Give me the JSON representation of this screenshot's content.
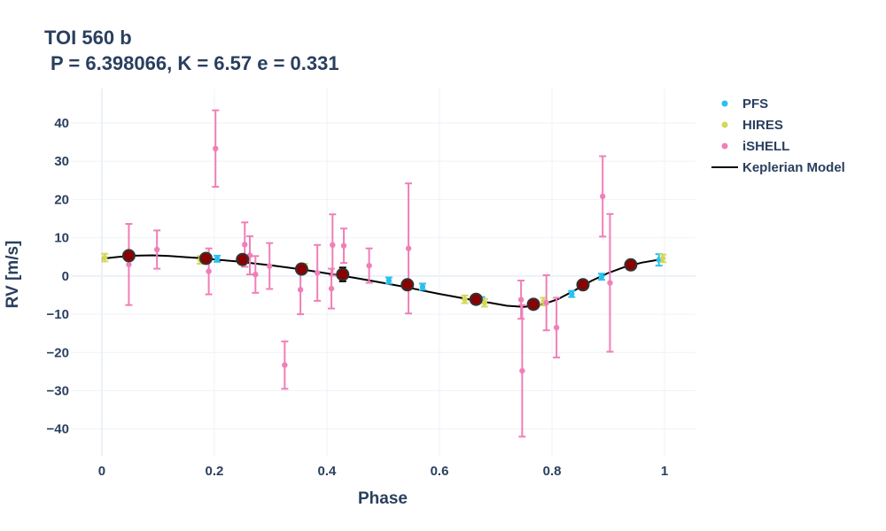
{
  "chart_data": {
    "type": "scatter",
    "title_line1": "TOI 560 b",
    "title_line2": "P = 6.398066, K = 6.57 e = 0.331",
    "xlabel": "Phase",
    "ylabel": "RV [m/s]",
    "xlim": [
      -0.055,
      1.055
    ],
    "ylim": [
      -47,
      49
    ],
    "xticks": [
      0,
      0.2,
      0.4,
      0.6,
      0.8,
      1
    ],
    "xtick_labels": [
      "0",
      "0.2",
      "0.4",
      "0.6",
      "0.8",
      "1"
    ],
    "yticks": [
      -40,
      -30,
      -20,
      -10,
      0,
      10,
      20,
      30,
      40
    ],
    "ytick_labels": [
      "−40",
      "−30",
      "−20",
      "−10",
      "0",
      "10",
      "20",
      "30",
      "40"
    ],
    "grid": true,
    "legend_position": "top-right",
    "series": [
      {
        "name": "PFS",
        "color": "#29c0f0",
        "marker": "point-with-errorbar",
        "points": [
          {
            "x": 0.205,
            "y": 4.5,
            "err": 0.8
          },
          {
            "x": 0.51,
            "y": -1.2,
            "err": 0.8
          },
          {
            "x": 0.57,
            "y": -2.8,
            "err": 0.8
          },
          {
            "x": 0.675,
            "y": -6.3,
            "err": 0.8
          },
          {
            "x": 0.835,
            "y": -4.7,
            "err": 0.8
          },
          {
            "x": 0.888,
            "y": -0.2,
            "err": 0.8
          },
          {
            "x": 0.99,
            "y": 4.2,
            "err": 1.5
          }
        ]
      },
      {
        "name": "HIRES",
        "color": "#d4d75a",
        "marker": "point-with-errorbar",
        "points": [
          {
            "x": 0.005,
            "y": 4.8,
            "err": 1.0
          },
          {
            "x": 0.175,
            "y": 4.2,
            "err": 1.0
          },
          {
            "x": 0.36,
            "y": 2.2,
            "err": 1.0
          },
          {
            "x": 0.645,
            "y": -6.1,
            "err": 1.0
          },
          {
            "x": 0.68,
            "y": -7.0,
            "err": 1.0
          },
          {
            "x": 0.785,
            "y": -6.7,
            "err": 1.0
          },
          {
            "x": 0.94,
            "y": 2.8,
            "err": 1.0
          },
          {
            "x": 0.997,
            "y": 4.6,
            "err": 1.0
          }
        ]
      },
      {
        "name": "iSHELL",
        "color": "#f07fb8",
        "marker": "point-with-errorbar",
        "points": [
          {
            "x": 0.048,
            "y": 3.0,
            "err": 10.6
          },
          {
            "x": 0.098,
            "y": 6.9,
            "err": 5.0
          },
          {
            "x": 0.19,
            "y": 1.2,
            "err": 6.0
          },
          {
            "x": 0.202,
            "y": 33.3,
            "err": 10.0
          },
          {
            "x": 0.254,
            "y": 8.2,
            "err": 5.8
          },
          {
            "x": 0.263,
            "y": 5.4,
            "err": 5.0
          },
          {
            "x": 0.273,
            "y": 0.4,
            "err": 4.8
          },
          {
            "x": 0.298,
            "y": 2.6,
            "err": 6.0
          },
          {
            "x": 0.325,
            "y": -23.3,
            "err": 6.2
          },
          {
            "x": 0.353,
            "y": -3.6,
            "err": 6.4
          },
          {
            "x": 0.383,
            "y": 0.8,
            "err": 7.3
          },
          {
            "x": 0.408,
            "y": -3.3,
            "err": 5.2
          },
          {
            "x": 0.41,
            "y": 8.1,
            "err": 8.0
          },
          {
            "x": 0.43,
            "y": 7.9,
            "err": 4.5
          },
          {
            "x": 0.475,
            "y": 2.7,
            "err": 4.5
          },
          {
            "x": 0.545,
            "y": 7.2,
            "err": 17.0
          },
          {
            "x": 0.745,
            "y": -6.2,
            "err": 5.0
          },
          {
            "x": 0.747,
            "y": -24.8,
            "err": 17.2
          },
          {
            "x": 0.79,
            "y": -7.0,
            "err": 7.2
          },
          {
            "x": 0.808,
            "y": -13.5,
            "err": 7.8
          },
          {
            "x": 0.89,
            "y": 20.8,
            "err": 10.5
          },
          {
            "x": 0.903,
            "y": -1.8,
            "err": 18.0
          }
        ]
      },
      {
        "name": "binned",
        "color": "#8b0000",
        "edge_color": "#333333",
        "marker": "large-circle",
        "points": [
          {
            "x": 0.048,
            "y": 5.3,
            "err": 0.8
          },
          {
            "x": 0.185,
            "y": 4.6,
            "err": 0.8
          },
          {
            "x": 0.25,
            "y": 4.3,
            "err": 0.8
          },
          {
            "x": 0.355,
            "y": 1.8,
            "err": 0.8
          },
          {
            "x": 0.428,
            "y": 0.4,
            "err": 1.8
          },
          {
            "x": 0.543,
            "y": -2.3,
            "err": 0.8
          },
          {
            "x": 0.665,
            "y": -6.1,
            "err": 0.8
          },
          {
            "x": 0.767,
            "y": -7.4,
            "err": 0.8
          },
          {
            "x": 0.855,
            "y": -2.3,
            "err": 0.8
          },
          {
            "x": 0.94,
            "y": 2.9,
            "err": 0.8
          }
        ]
      }
    ],
    "model": {
      "name": "Keplerian Model",
      "color": "#000000",
      "x": [
        0.0,
        0.03,
        0.06,
        0.09,
        0.12,
        0.15,
        0.18,
        0.21,
        0.24,
        0.27,
        0.3,
        0.33,
        0.36,
        0.39,
        0.42,
        0.45,
        0.48,
        0.51,
        0.54,
        0.57,
        0.6,
        0.63,
        0.66,
        0.69,
        0.72,
        0.75,
        0.78,
        0.81,
        0.84,
        0.87,
        0.9,
        0.93,
        0.96,
        1.0
      ],
      "y": [
        4.5,
        5.0,
        5.3,
        5.4,
        5.2,
        4.9,
        4.6,
        4.2,
        3.8,
        3.3,
        2.8,
        2.2,
        1.6,
        0.9,
        0.2,
        -0.5,
        -1.3,
        -2.1,
        -2.9,
        -3.8,
        -4.7,
        -5.5,
        -6.3,
        -7.0,
        -7.8,
        -8.1,
        -7.6,
        -6.1,
        -3.8,
        -1.3,
        0.8,
        2.4,
        3.5,
        4.5
      ]
    }
  }
}
